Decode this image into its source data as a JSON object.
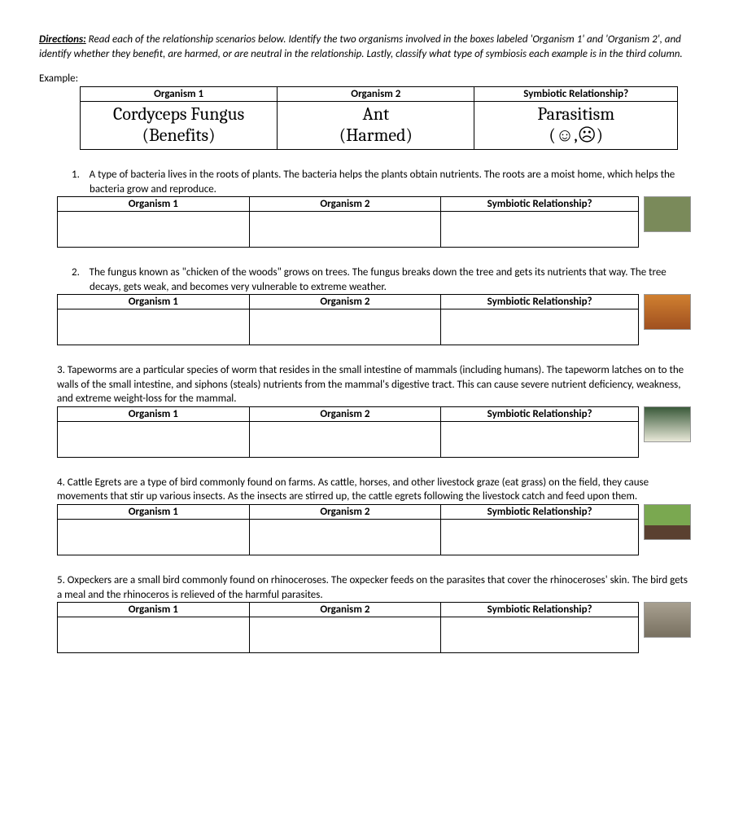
{
  "directions": {
    "label": "Directions:",
    "text": " Read each of the relationship scenarios below.  Identify the two organisms involved in the boxes labeled 'Organism 1' and 'Organism 2', and identify whether they benefit, are harmed, or are neutral in the relationship.  Lastly, classify what type of symbiosis each example is in the third column."
  },
  "example_label": "Example:",
  "headers": {
    "org1": "Organism 1",
    "org2": "Organism 2",
    "rel": "Symbiotic Relationship?"
  },
  "example": {
    "org1": "Cordyceps Fungus",
    "org1_note": "(Benefits)",
    "org2": "Ant",
    "org2_note": "(Harmed)",
    "rel": "Parasitism",
    "rel_note": "(☺,☹)"
  },
  "questions": [
    {
      "num": "1.",
      "prompt": "A type of bacteria lives in the roots of plants. The bacteria helps the plants obtain nutrients.  The roots are a moist home, which helps the bacteria grow and reproduce.",
      "thumb_class": ""
    },
    {
      "num": "2.",
      "prompt": "The fungus known as \"chicken of the woods\" grows on trees.  The fungus breaks down the tree and gets its nutrients that way.  The tree decays, gets weak, and becomes very vulnerable to extreme weather.",
      "thumb_class": "orange"
    },
    {
      "num": "3.",
      "prompt": "Tapeworms are a particular species of worm that resides in the small intestine of mammals (including humans).  The tapeworm latches on to the walls of the small intestine, and siphons (steals) nutrients from the mammal's digestive tract.  This can cause severe nutrient deficiency, weakness, and extreme weight-loss for the mammal.",
      "thumb_class": "worm"
    },
    {
      "num": "4.",
      "prompt": "Cattle Egrets are a type of bird commonly found on farms. As cattle, horses, and other livestock graze (eat grass) on the field, they cause movements that stir up various insects. As the insects are stirred up, the cattle egrets following the livestock catch and feed upon them.",
      "thumb_class": "cattle"
    },
    {
      "num": "5.",
      "prompt": "Oxpeckers are a small bird commonly found on rhinoceroses. The oxpecker feeds on the parasites that cover the rhinoceroses' skin.  The bird gets a meal and the rhinoceros is relieved of the harmful parasites.",
      "thumb_class": "rhino"
    }
  ]
}
